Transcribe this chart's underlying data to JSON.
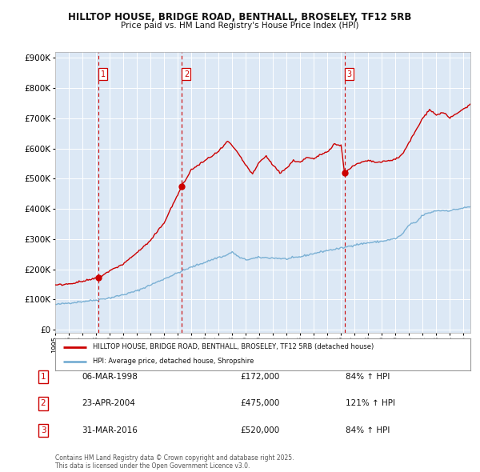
{
  "title": "HILLTOP HOUSE, BRIDGE ROAD, BENTHALL, BROSELEY, TF12 5RB",
  "subtitle": "Price paid vs. HM Land Registry's House Price Index (HPI)",
  "ylim": [
    0,
    900000
  ],
  "yticks": [
    0,
    100000,
    200000,
    300000,
    400000,
    500000,
    600000,
    700000,
    800000,
    900000
  ],
  "background_color": "#dce8f5",
  "grid_color": "#ffffff",
  "red_color": "#cc0000",
  "blue_color": "#7ab0d4",
  "sale_prices": [
    172000,
    475000,
    520000
  ],
  "sale_labels": [
    "1",
    "2",
    "3"
  ],
  "sale_year_floats": [
    1998.17,
    2004.3,
    2016.25
  ],
  "sale_info": [
    {
      "label": "1",
      "date": "06-MAR-1998",
      "price": "£172,000",
      "hpi": "84% ↑ HPI"
    },
    {
      "label": "2",
      "date": "23-APR-2004",
      "price": "£475,000",
      "hpi": "121% ↑ HPI"
    },
    {
      "label": "3",
      "date": "31-MAR-2016",
      "price": "£520,000",
      "hpi": "84% ↑ HPI"
    }
  ],
  "legend_line1": "HILLTOP HOUSE, BRIDGE ROAD, BENTHALL, BROSELEY, TF12 5RB (detached house)",
  "legend_line2": "HPI: Average price, detached house, Shropshire",
  "footnote": "Contains HM Land Registry data © Crown copyright and database right 2025.\nThis data is licensed under the Open Government Licence v3.0.",
  "xstart": 1995.0,
  "xend": 2025.5
}
